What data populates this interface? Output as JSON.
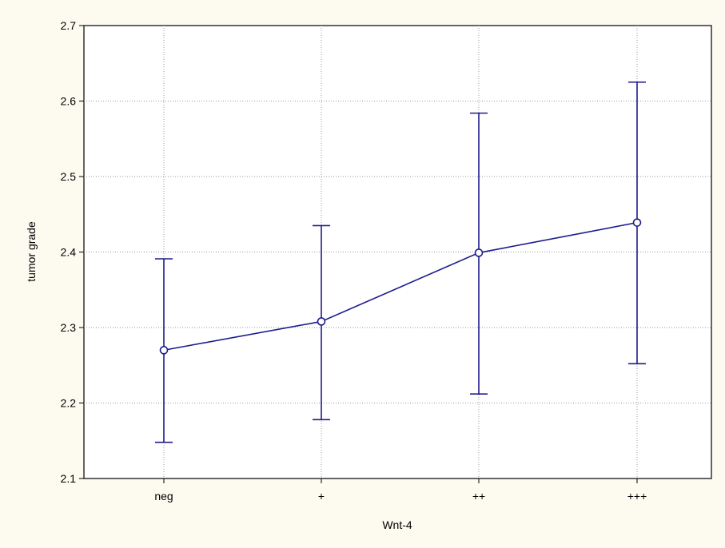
{
  "chart_data": {
    "type": "line",
    "title": "",
    "xlabel": "Wnt-4",
    "ylabel": "tumor grade",
    "categories": [
      "neg",
      "+",
      "++",
      "+++"
    ],
    "series": [
      {
        "values": [
          2.27,
          2.308,
          2.399,
          2.439
        ],
        "error_lower": [
          2.148,
          2.178,
          2.212,
          2.252
        ],
        "error_upper": [
          2.391,
          2.435,
          2.584,
          2.625
        ]
      }
    ],
    "ylim": [
      2.1,
      2.7
    ],
    "yticks": [
      "2.1",
      "2.2",
      "2.3",
      "2.4",
      "2.5",
      "2.6",
      "2.7"
    ],
    "grid": true,
    "colors": {
      "background": "#fdfaf0",
      "plot_background": "#ffffff",
      "series": "#1c1c8c",
      "grid": "#9a9a9a"
    }
  }
}
